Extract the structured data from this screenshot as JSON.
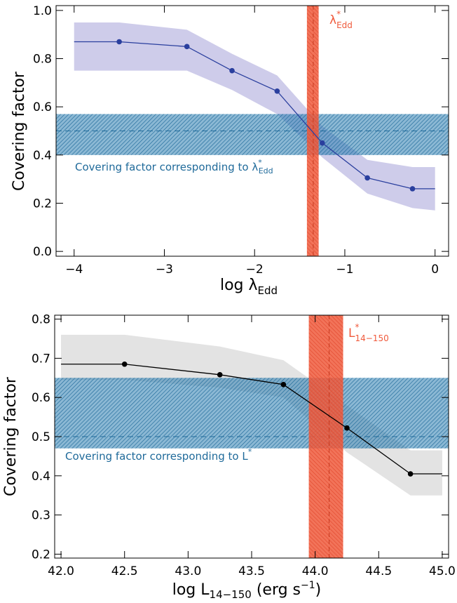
{
  "chart_data": [
    {
      "type": "line",
      "xlabel": {
        "main": "log λ",
        "sub": "Edd"
      },
      "ylabel": "Covering factor",
      "xlim": [
        -4.2,
        0.15
      ],
      "ylim": [
        -0.02,
        1.02
      ],
      "xticks": [
        -4,
        -3,
        -2,
        -1,
        0
      ],
      "xtick_labels": [
        "−4",
        "−3",
        "−2",
        "−1",
        "0"
      ],
      "yticks": [
        0.0,
        0.2,
        0.4,
        0.6,
        0.8,
        1.0
      ],
      "ytick_labels": [
        "0.0",
        "0.2",
        "0.4",
        "0.6",
        "0.8",
        "1.0"
      ],
      "series": [
        {
          "x": [
            -4.0,
            -3.5,
            -2.75,
            -2.25,
            -1.75,
            -1.25,
            -0.75,
            -0.25,
            0.0
          ],
          "y": [
            0.87,
            0.87,
            0.85,
            0.75,
            0.665,
            0.45,
            0.305,
            0.26,
            0.26
          ],
          "markers": [
            -3.5,
            -2.75,
            -2.25,
            -1.75,
            -1.25,
            -0.75,
            -0.25
          ],
          "band_x": [
            -4.0,
            -3.5,
            -2.75,
            -2.25,
            -1.75,
            -1.25,
            -0.75,
            -0.25,
            0.0
          ],
          "band_lower": [
            0.75,
            0.75,
            0.75,
            0.67,
            0.57,
            0.39,
            0.24,
            0.18,
            0.17
          ],
          "band_upper": [
            0.95,
            0.95,
            0.92,
            0.82,
            0.73,
            0.52,
            0.38,
            0.35,
            0.35
          ]
        }
      ],
      "hband": {
        "y0": 0.4,
        "y1": 0.57,
        "y_center": 0.5
      },
      "vband": {
        "x0": -1.42,
        "x1": -1.29,
        "x_center": -1.35
      },
      "annotation_blue": {
        "text": "Covering factor corresponding to λ",
        "sup": "*",
        "sub": "Edd"
      },
      "annotation_red": {
        "text": "λ",
        "sup": "*",
        "sub": "Edd"
      },
      "colors": {
        "line": "#2a3f9e",
        "band": "#c9c6e8",
        "hband": "#2c7db0",
        "vband": "#f05a3c"
      }
    },
    {
      "type": "line",
      "xlabel": {
        "main": "log L",
        "sub": "14−150",
        "rest": " (erg s",
        "sup": "−1",
        "end": ")"
      },
      "ylabel": "Covering factor",
      "xlim": [
        41.95,
        45.05
      ],
      "ylim": [
        0.19,
        0.81
      ],
      "xticks": [
        42.0,
        42.5,
        43.0,
        43.5,
        44.0,
        44.5,
        45.0
      ],
      "xtick_labels": [
        "42.0",
        "42.5",
        "43.0",
        "43.5",
        "44.0",
        "44.5",
        "45.0"
      ],
      "yticks": [
        0.2,
        0.3,
        0.4,
        0.5,
        0.6,
        0.7,
        0.8
      ],
      "ytick_labels": [
        "0.2",
        "0.3",
        "0.4",
        "0.5",
        "0.6",
        "0.7",
        "0.8"
      ],
      "series": [
        {
          "x": [
            42.0,
            42.5,
            43.25,
            43.75,
            44.25,
            44.75,
            45.0
          ],
          "y": [
            0.685,
            0.685,
            0.658,
            0.633,
            0.522,
            0.405,
            0.405
          ],
          "markers": [
            42.5,
            43.25,
            43.75,
            44.25,
            44.75
          ],
          "band_x": [
            42.0,
            42.5,
            43.25,
            43.75,
            44.25,
            44.75,
            45.0
          ],
          "band_lower": [
            0.645,
            0.645,
            0.625,
            0.6,
            0.46,
            0.35,
            0.35
          ],
          "band_upper": [
            0.76,
            0.76,
            0.73,
            0.695,
            0.58,
            0.465,
            0.465
          ]
        }
      ],
      "hband": {
        "y0": 0.47,
        "y1": 0.65,
        "y_center": 0.5
      },
      "vband": {
        "x0": 43.95,
        "x1": 44.22,
        "x_center": 44.11
      },
      "annotation_blue": {
        "text": "Covering factor corresponding to L",
        "sup": "*"
      },
      "annotation_red": {
        "text": "L",
        "sup": "*",
        "sub": "14−150"
      },
      "colors": {
        "line": "#000000",
        "band": "#e0e0e0",
        "hband": "#2c7db0",
        "vband": "#f05a3c"
      }
    }
  ]
}
